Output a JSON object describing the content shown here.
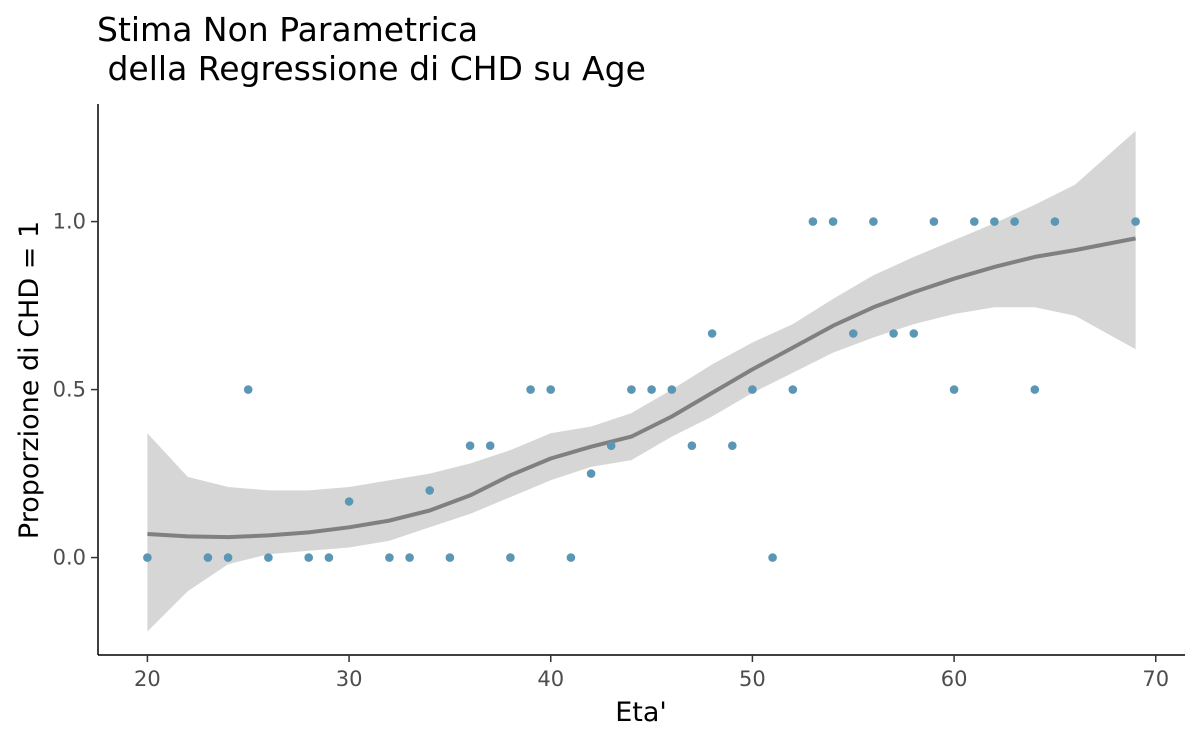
{
  "chart_data": {
    "type": "scatter",
    "title_lines": [
      "Stima Non Parametrica",
      " della Regressione di CHD su Age"
    ],
    "xlabel": "Eta'",
    "ylabel": "Proporzione di CHD = 1",
    "xlim": [
      17.55,
      71.45
    ],
    "ylim": [
      -0.29,
      1.35
    ],
    "x_ticks": [
      20,
      30,
      40,
      50,
      60,
      70
    ],
    "y_ticks": [
      0.0,
      0.5,
      1.0
    ],
    "y_tick_labels": [
      "0.0",
      "0.5",
      "1.0"
    ],
    "grid": false,
    "legend": "none",
    "colors": {
      "points": "#5b97b5",
      "smooth_line": "#808080",
      "confidence_band": "#d6d6d6",
      "axis": "#000000"
    },
    "points": {
      "x": [
        20,
        23,
        24,
        25,
        26,
        28,
        29,
        30,
        32,
        33,
        34,
        35,
        36,
        37,
        38,
        39,
        40,
        41,
        42,
        43,
        44,
        45,
        46,
        47,
        48,
        49,
        50,
        51,
        52,
        53,
        54,
        55,
        56,
        57,
        58,
        59,
        60,
        61,
        62,
        63,
        64,
        65,
        69
      ],
      "y": [
        0,
        0,
        0,
        0.5,
        0,
        0,
        0,
        0.167,
        0,
        0,
        0.2,
        0,
        0.333,
        0.333,
        0,
        0.5,
        0.5,
        0,
        0.25,
        0.333,
        0.5,
        0.5,
        0.5,
        0.333,
        0.667,
        0.333,
        0.5,
        0,
        0.5,
        1,
        1,
        0.667,
        1,
        0.667,
        0.667,
        1,
        0.5,
        1,
        1,
        1,
        0.5,
        1,
        1
      ]
    },
    "smooth": {
      "x": [
        20,
        22,
        24,
        26,
        28,
        30,
        32,
        34,
        36,
        38,
        40,
        42,
        44,
        46,
        48,
        50,
        52,
        54,
        56,
        58,
        60,
        62,
        64,
        66,
        69
      ],
      "y": [
        0.07,
        0.063,
        0.061,
        0.066,
        0.075,
        0.09,
        0.11,
        0.14,
        0.185,
        0.245,
        0.295,
        0.33,
        0.36,
        0.42,
        0.49,
        0.56,
        0.625,
        0.69,
        0.745,
        0.79,
        0.83,
        0.865,
        0.895,
        0.915,
        0.95
      ],
      "lower": [
        -0.22,
        -0.1,
        -0.02,
        0.01,
        0.02,
        0.03,
        0.05,
        0.09,
        0.13,
        0.18,
        0.23,
        0.27,
        0.29,
        0.36,
        0.42,
        0.49,
        0.55,
        0.61,
        0.655,
        0.695,
        0.725,
        0.745,
        0.745,
        0.72,
        0.62
      ],
      "upper": [
        0.37,
        0.24,
        0.21,
        0.2,
        0.2,
        0.21,
        0.23,
        0.25,
        0.28,
        0.32,
        0.37,
        0.39,
        0.43,
        0.5,
        0.575,
        0.64,
        0.695,
        0.77,
        0.84,
        0.895,
        0.945,
        0.995,
        1.05,
        1.11,
        1.27
      ]
    }
  }
}
